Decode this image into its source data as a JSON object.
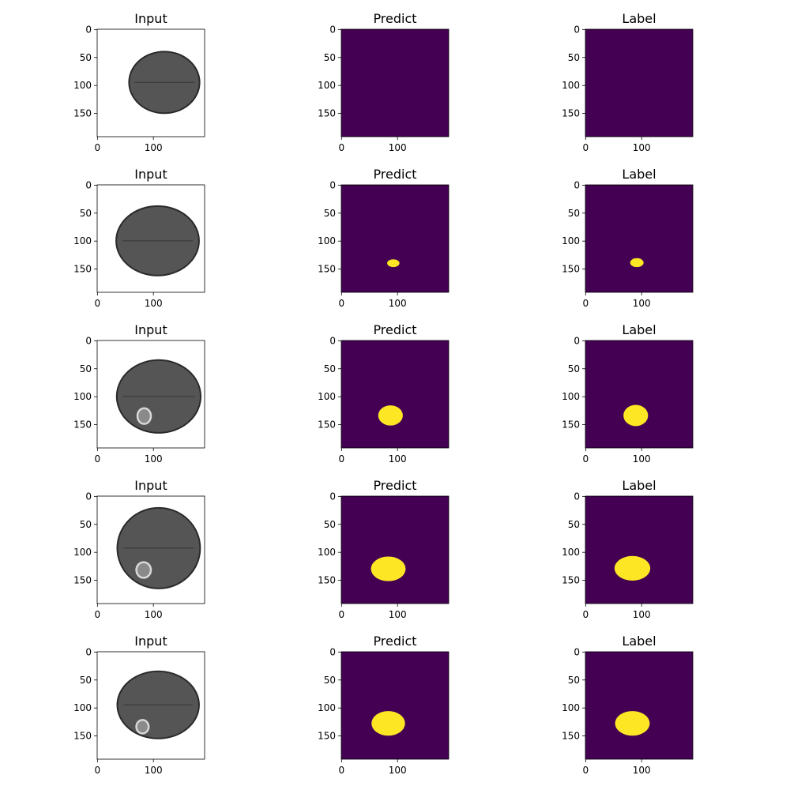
{
  "chart_data": {
    "type": "image-grid",
    "rows": 5,
    "columns": [
      "Input",
      "Predict",
      "Label"
    ],
    "axes": {
      "x_ticks": [
        0,
        100
      ],
      "y_ticks": [
        0,
        50,
        100,
        150
      ],
      "image_size": 192
    },
    "colors": {
      "mask_background": "#440154",
      "mask_foreground": "#fde725",
      "outside_brain": "#ffffff",
      "brain_tissue": "#555555"
    },
    "panels": [
      {
        "title": "Input",
        "brain": {
          "cx": 120,
          "cy": 95,
          "rx": 63,
          "ry": 55
        },
        "lesion": null,
        "predict_mask": null,
        "label_mask": null
      },
      {
        "title": "Input",
        "brain": {
          "cx": 108,
          "cy": 100,
          "rx": 74,
          "ry": 62
        },
        "lesion": null,
        "predict_mask": {
          "cx": 93,
          "cy": 140,
          "rx": 11,
          "ry": 7
        },
        "label_mask": {
          "cx": 92,
          "cy": 139,
          "rx": 12,
          "ry": 8
        }
      },
      {
        "title": "Input",
        "brain": {
          "cx": 110,
          "cy": 100,
          "rx": 75,
          "ry": 65
        },
        "lesion": {
          "cx": 84,
          "cy": 135,
          "rx": 12,
          "ry": 14
        },
        "predict_mask": {
          "cx": 88,
          "cy": 134,
          "rx": 22,
          "ry": 18
        },
        "label_mask": {
          "cx": 90,
          "cy": 134,
          "rx": 22,
          "ry": 19
        }
      },
      {
        "title": "Input",
        "brain": {
          "cx": 110,
          "cy": 93,
          "rx": 74,
          "ry": 72
        },
        "lesion": {
          "cx": 83,
          "cy": 132,
          "rx": 13,
          "ry": 14
        },
        "predict_mask": {
          "cx": 84,
          "cy": 130,
          "rx": 31,
          "ry": 22
        },
        "label_mask": {
          "cx": 84,
          "cy": 129,
          "rx": 32,
          "ry": 22
        }
      },
      {
        "title": "Input",
        "brain": {
          "cx": 109,
          "cy": 95,
          "rx": 73,
          "ry": 60
        },
        "lesion": {
          "cx": 81,
          "cy": 134,
          "rx": 11,
          "ry": 12
        },
        "predict_mask": {
          "cx": 84,
          "cy": 128,
          "rx": 30,
          "ry": 22
        },
        "label_mask": {
          "cx": 84,
          "cy": 128,
          "rx": 31,
          "ry": 22
        }
      }
    ]
  }
}
